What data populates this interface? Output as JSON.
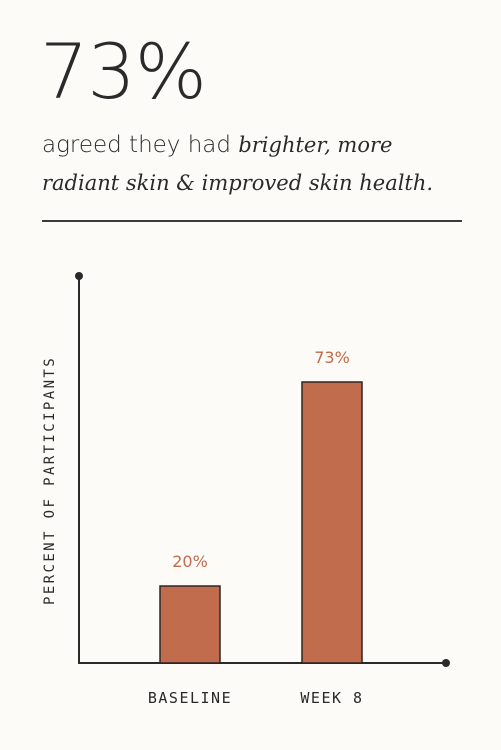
{
  "headline": "73%",
  "statement": {
    "lead": "agreed they had ",
    "emphasis": "brighter, more radiant skin & improved skin health."
  },
  "chart_data": {
    "type": "bar",
    "categories": [
      "BASELINE",
      "WEEK 8"
    ],
    "values": [
      20,
      73
    ],
    "data_labels": [
      "20%",
      "73%"
    ],
    "title": "",
    "xlabel": "",
    "ylabel": "PERCENT OF PARTICIPANTS",
    "ylim": [
      0,
      100
    ],
    "grid": false,
    "legend": "none",
    "colors": {
      "bar": "#c06c4d",
      "bar_outline": "#2e2622",
      "data_label": "#c06c4d",
      "axis": "#2a2a2a"
    }
  }
}
